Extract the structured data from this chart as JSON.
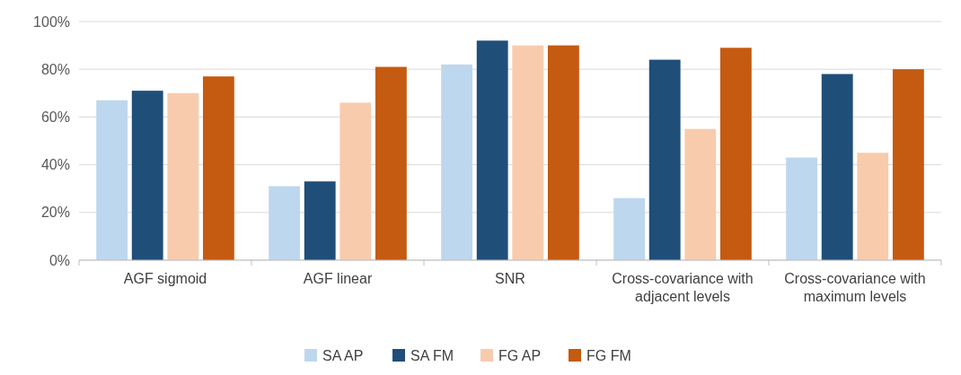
{
  "chart_data": {
    "type": "bar",
    "categories": [
      "AGF sigmoid",
      "AGF linear",
      "SNR",
      "Cross-covariance with adjacent levels",
      "Cross-covariance with maximum levels"
    ],
    "series": [
      {
        "name": "SA AP",
        "color": "#bdd7ee",
        "values": [
          67,
          31,
          82,
          26,
          43
        ]
      },
      {
        "name": "SA FM",
        "color": "#1f4e79",
        "values": [
          71,
          33,
          92,
          84,
          78
        ]
      },
      {
        "name": "FG AP",
        "color": "#f8cbad",
        "values": [
          70,
          66,
          90,
          55,
          45
        ]
      },
      {
        "name": "FG FM",
        "color": "#c55a11",
        "values": [
          77,
          81,
          90,
          89,
          80
        ]
      }
    ],
    "ylim": [
      0,
      100
    ],
    "yticks": [
      {
        "value": 0,
        "label": "0%"
      },
      {
        "value": 20,
        "label": "20%"
      },
      {
        "value": 40,
        "label": "40%"
      },
      {
        "value": 60,
        "label": "60%"
      },
      {
        "value": 80,
        "label": "80%"
      },
      {
        "value": 100,
        "label": "100%"
      }
    ],
    "grid": "y",
    "legend": "bottom"
  }
}
